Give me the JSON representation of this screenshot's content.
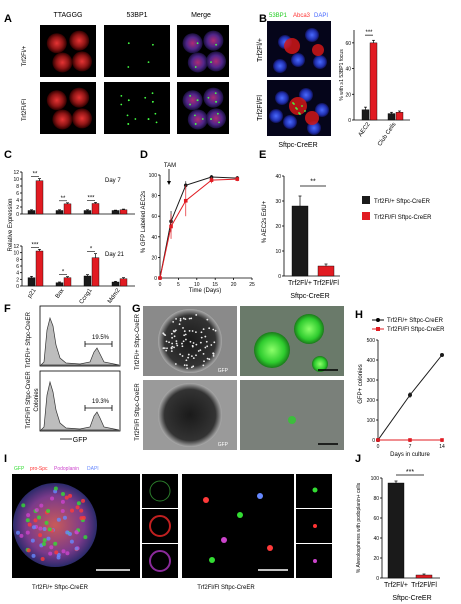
{
  "panel_labels": [
    "A",
    "B",
    "C",
    "D",
    "E",
    "F",
    "G",
    "H",
    "I",
    "J"
  ],
  "panel_a": {
    "col_headers": [
      "TTAGGG",
      "53BP1",
      "Merge"
    ],
    "row_labels": [
      "Trf2Fl/+",
      "Trf2Fl/Fl"
    ]
  },
  "panel_b": {
    "stain_labels": [
      "53BP1",
      "Abca3",
      "DAPI"
    ],
    "stain_colors": [
      "#22cc22",
      "#ff3333",
      "#4466ff"
    ],
    "row_labels": [
      "Trf2Fl/+",
      "Trf2Fl/Fl"
    ],
    "genotype_label": "Sftpc-CreER"
  },
  "panel_c": {
    "ylabel": "Relative Expression",
    "day_labels": [
      "Day 7",
      "Day 21"
    ],
    "categories": [
      "p21",
      "Bax",
      "Ccng1",
      "Mdm2"
    ]
  },
  "panel_d": {
    "annotation": "TAM",
    "ylabel": "% GFP Labeled AEC2s",
    "xlabel": "Time (Days)"
  },
  "panel_e": {
    "ylabel": "% AEC2s EdU+",
    "group_label": "Sftpc-CreER",
    "categories": [
      "Trf2Fl/+",
      "Trf2Fl/Fl"
    ],
    "legend": [
      "Trf2Fl/+ Sftpc-CreER",
      "Trf2Fl/Fl Sftpc-CreER"
    ],
    "sig": "**"
  },
  "panel_f": {
    "row_labels": [
      "Trf2Fl/+ Sftpc-CreER",
      "Trf2Fl/Fl Sftpc-CreER"
    ],
    "percents": [
      "19.5%",
      "19.3%"
    ],
    "xlabel": "GFP"
  },
  "panel_g": {
    "row_labels": [
      "Trf2Fl/+ Sftpc-CreER",
      "Trf2Fl/Fl Sftpc-CreER"
    ],
    "inset_label": "GFP"
  },
  "panel_h": {
    "legend": [
      "Trf2Fl/+ Sftpc-CreER",
      "Trf2Fl/Fl Sftpc-CreER"
    ],
    "ylabel": "GFP+ colonies",
    "xlabel": "Days in culture"
  },
  "panel_i": {
    "stain_labels": [
      "GFP",
      "pro-Spc",
      "Podoplanin",
      "DAPI"
    ],
    "stain_colors": [
      "#33dd33",
      "#ff3333",
      "#cc44cc",
      "#6688ff"
    ],
    "captions": [
      "Trf2Fl/+ Sftpc-CreER",
      "Trf2Fl/Fl Sftpc-CreER"
    ]
  },
  "panel_j": {
    "ylabel": "% Alveolospheres with podoplanin+ cells",
    "categories": [
      "Trf2Fl/+",
      "Trf2Fl/Fl"
    ],
    "group_label": "Sftpc-CreER",
    "sig": "***"
  },
  "chart_data": [
    {
      "panel": "B",
      "type": "bar",
      "categories": [
        "AEC2",
        "Club Cells"
      ],
      "series": [
        {
          "name": "Trf2Fl/+",
          "values": [
            8,
            5
          ],
          "errors": [
            2,
            1
          ]
        },
        {
          "name": "Trf2Fl/Fl",
          "values": [
            60,
            6
          ],
          "errors": [
            2,
            1
          ]
        }
      ],
      "ylabel": "% with ≥1 53BP1 focus",
      "ylim": [
        0,
        70
      ],
      "yticks": [
        0,
        20,
        40,
        60
      ],
      "annotation": "***"
    },
    {
      "panel": "C-Day7",
      "type": "bar",
      "categories": [
        "p21",
        "Bax",
        "Ccng1",
        "Mdm2"
      ],
      "series": [
        {
          "name": "Trf2Fl/+",
          "values": [
            1,
            1,
            1,
            1
          ],
          "errors": [
            0.2,
            0.2,
            0.2,
            0.1
          ]
        },
        {
          "name": "Trf2Fl/Fl",
          "values": [
            9.5,
            2.9,
            3.0,
            1.2
          ],
          "errors": [
            0.6,
            0.3,
            0.3,
            0.2
          ]
        }
      ],
      "ylim": [
        0,
        12
      ],
      "yticks": [
        0,
        2,
        4,
        6,
        8,
        10,
        12
      ],
      "annotations": [
        "**",
        "**",
        "***",
        ""
      ]
    },
    {
      "panel": "C-Day21",
      "type": "bar",
      "categories": [
        "p21",
        "Bax",
        "Ccng1",
        "Mdm2"
      ],
      "series": [
        {
          "name": "Trf2Fl/+",
          "values": [
            2.5,
            1,
            3,
            1.2
          ],
          "errors": [
            0.4,
            0.2,
            0.4,
            0.2
          ]
        },
        {
          "name": "Trf2Fl/Fl",
          "values": [
            10.5,
            2.5,
            8.5,
            2.2
          ],
          "errors": [
            0.5,
            0.3,
            1.2,
            0.3
          ]
        }
      ],
      "ylim": [
        0,
        12
      ],
      "yticks": [
        0,
        2,
        4,
        6,
        8,
        10,
        12
      ],
      "annotations": [
        "***",
        "*",
        "*",
        ""
      ]
    },
    {
      "panel": "D",
      "type": "line",
      "x": [
        0,
        3,
        7,
        14,
        21
      ],
      "series": [
        {
          "name": "Trf2Fl/+",
          "values": [
            0,
            55,
            90,
            98,
            97
          ],
          "errors": [
            0,
            10,
            4,
            2,
            2
          ]
        },
        {
          "name": "Trf2Fl/Fl",
          "values": [
            0,
            50,
            75,
            95,
            96
          ],
          "errors": [
            0,
            12,
            15,
            3,
            2
          ]
        }
      ],
      "xticks": [
        0,
        5,
        10,
        15,
        20,
        25
      ],
      "yticks": [
        0,
        20,
        40,
        60,
        80,
        100
      ],
      "xlim": [
        0,
        25
      ],
      "ylim": [
        0,
        100
      ]
    },
    {
      "panel": "E",
      "type": "bar",
      "categories": [
        "Trf2Fl/+",
        "Trf2Fl/Fl"
      ],
      "values": [
        28,
        4
      ],
      "errors": [
        4,
        0.8
      ],
      "ylim": [
        0,
        40
      ],
      "yticks": [
        0,
        10,
        20,
        30,
        40
      ]
    },
    {
      "panel": "H",
      "type": "line",
      "x": [
        0,
        7,
        14
      ],
      "series": [
        {
          "name": "Trf2Fl/+ Sftpc-CreER",
          "values": [
            0,
            225,
            425
          ],
          "errors": [
            0,
            15,
            0
          ]
        },
        {
          "name": "Trf2Fl/Fl Sftpc-CreER",
          "values": [
            0,
            0,
            0
          ],
          "errors": [
            0,
            0,
            0
          ]
        }
      ],
      "xticks": [
        0,
        7,
        14
      ],
      "yticks": [
        0,
        100,
        200,
        300,
        400,
        500
      ],
      "ylim": [
        0,
        500
      ]
    },
    {
      "panel": "J",
      "type": "bar",
      "categories": [
        "Trf2Fl/+",
        "Trf2Fl/Fl"
      ],
      "values": [
        95,
        3
      ],
      "errors": [
        2,
        1
      ],
      "ylim": [
        0,
        100
      ],
      "yticks": [
        0,
        20,
        40,
        60,
        80,
        100
      ]
    }
  ]
}
